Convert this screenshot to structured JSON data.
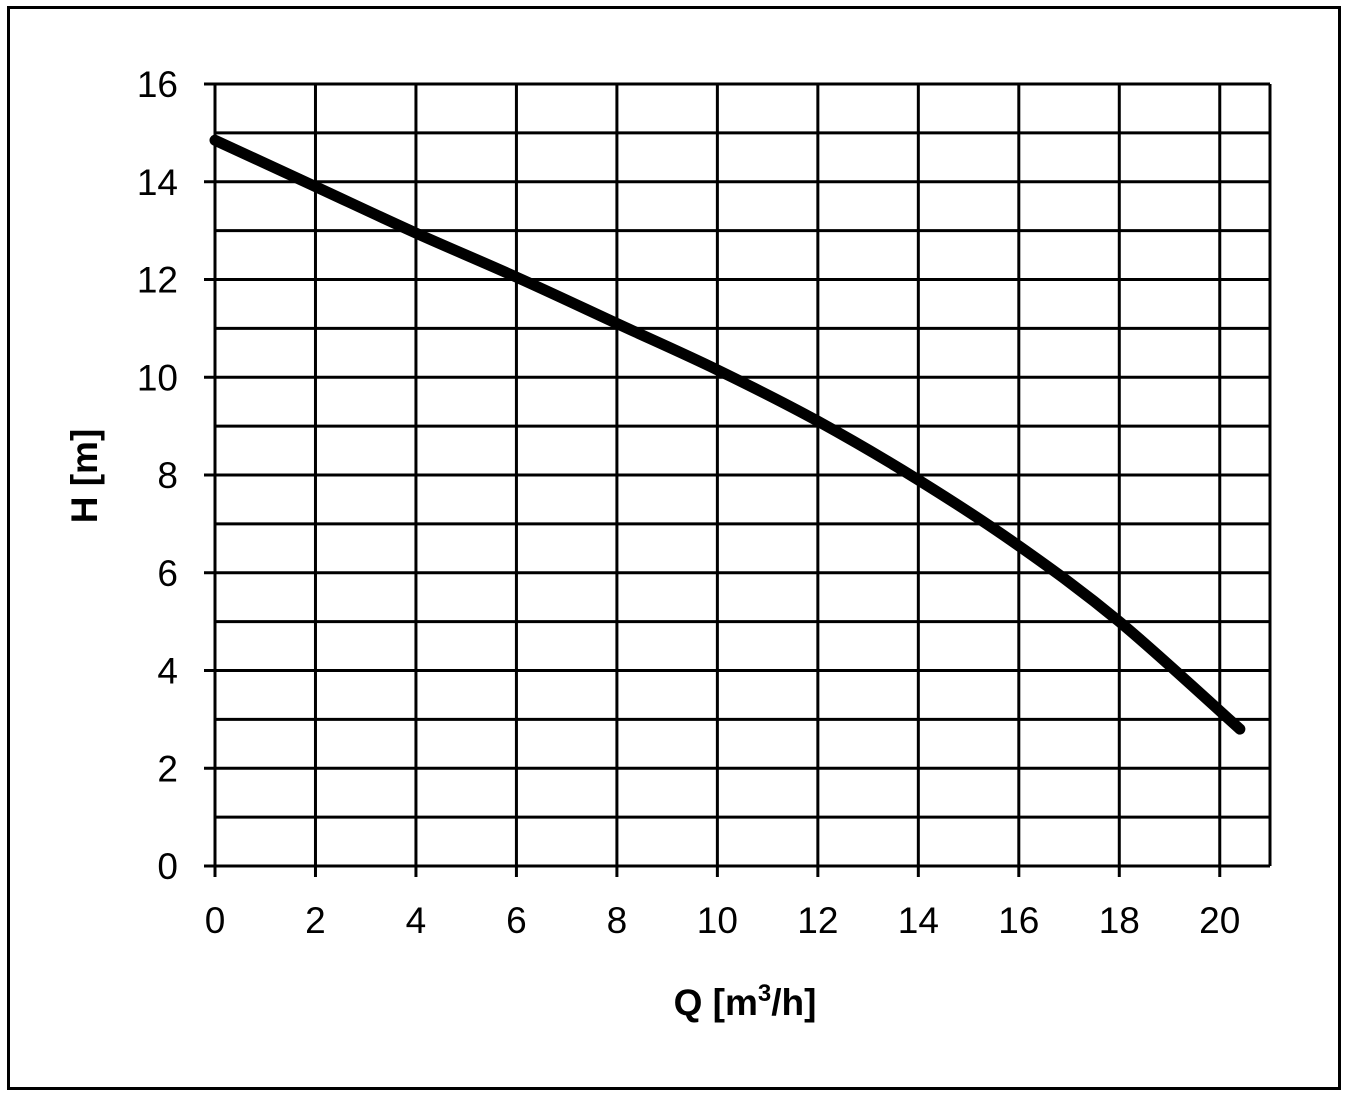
{
  "chart_data": {
    "type": "line",
    "title": "",
    "xlabel": {
      "base": "Q [m",
      "sup": "3",
      "tail": "/h]"
    },
    "ylabel": "H [m]",
    "xlim": [
      0,
      21
    ],
    "ylim": [
      0,
      16
    ],
    "x_ticks": [
      0,
      2,
      4,
      6,
      8,
      10,
      12,
      14,
      16,
      18,
      20
    ],
    "y_ticks": [
      0,
      2,
      4,
      6,
      8,
      10,
      12,
      14,
      16
    ],
    "x_tick_labels": [
      "0",
      "2",
      "4",
      "6",
      "8",
      "10",
      "12",
      "14",
      "16",
      "18",
      "20"
    ],
    "y_tick_labels": [
      "0",
      "2",
      "4",
      "6",
      "8",
      "10",
      "12",
      "14",
      "16"
    ],
    "grid": {
      "x_step": 2,
      "y_step": 1
    },
    "legend": "none",
    "series": [
      {
        "x": [
          0,
          2,
          4,
          6,
          8,
          10,
          12,
          14,
          16,
          18,
          20.4
        ],
        "y": [
          14.85,
          13.9,
          12.95,
          12.05,
          11.1,
          10.15,
          9.1,
          7.9,
          6.55,
          5.0,
          2.8
        ]
      }
    ],
    "colors": {
      "line": "#000000",
      "grid": "#000000",
      "background": "#ffffff"
    }
  }
}
